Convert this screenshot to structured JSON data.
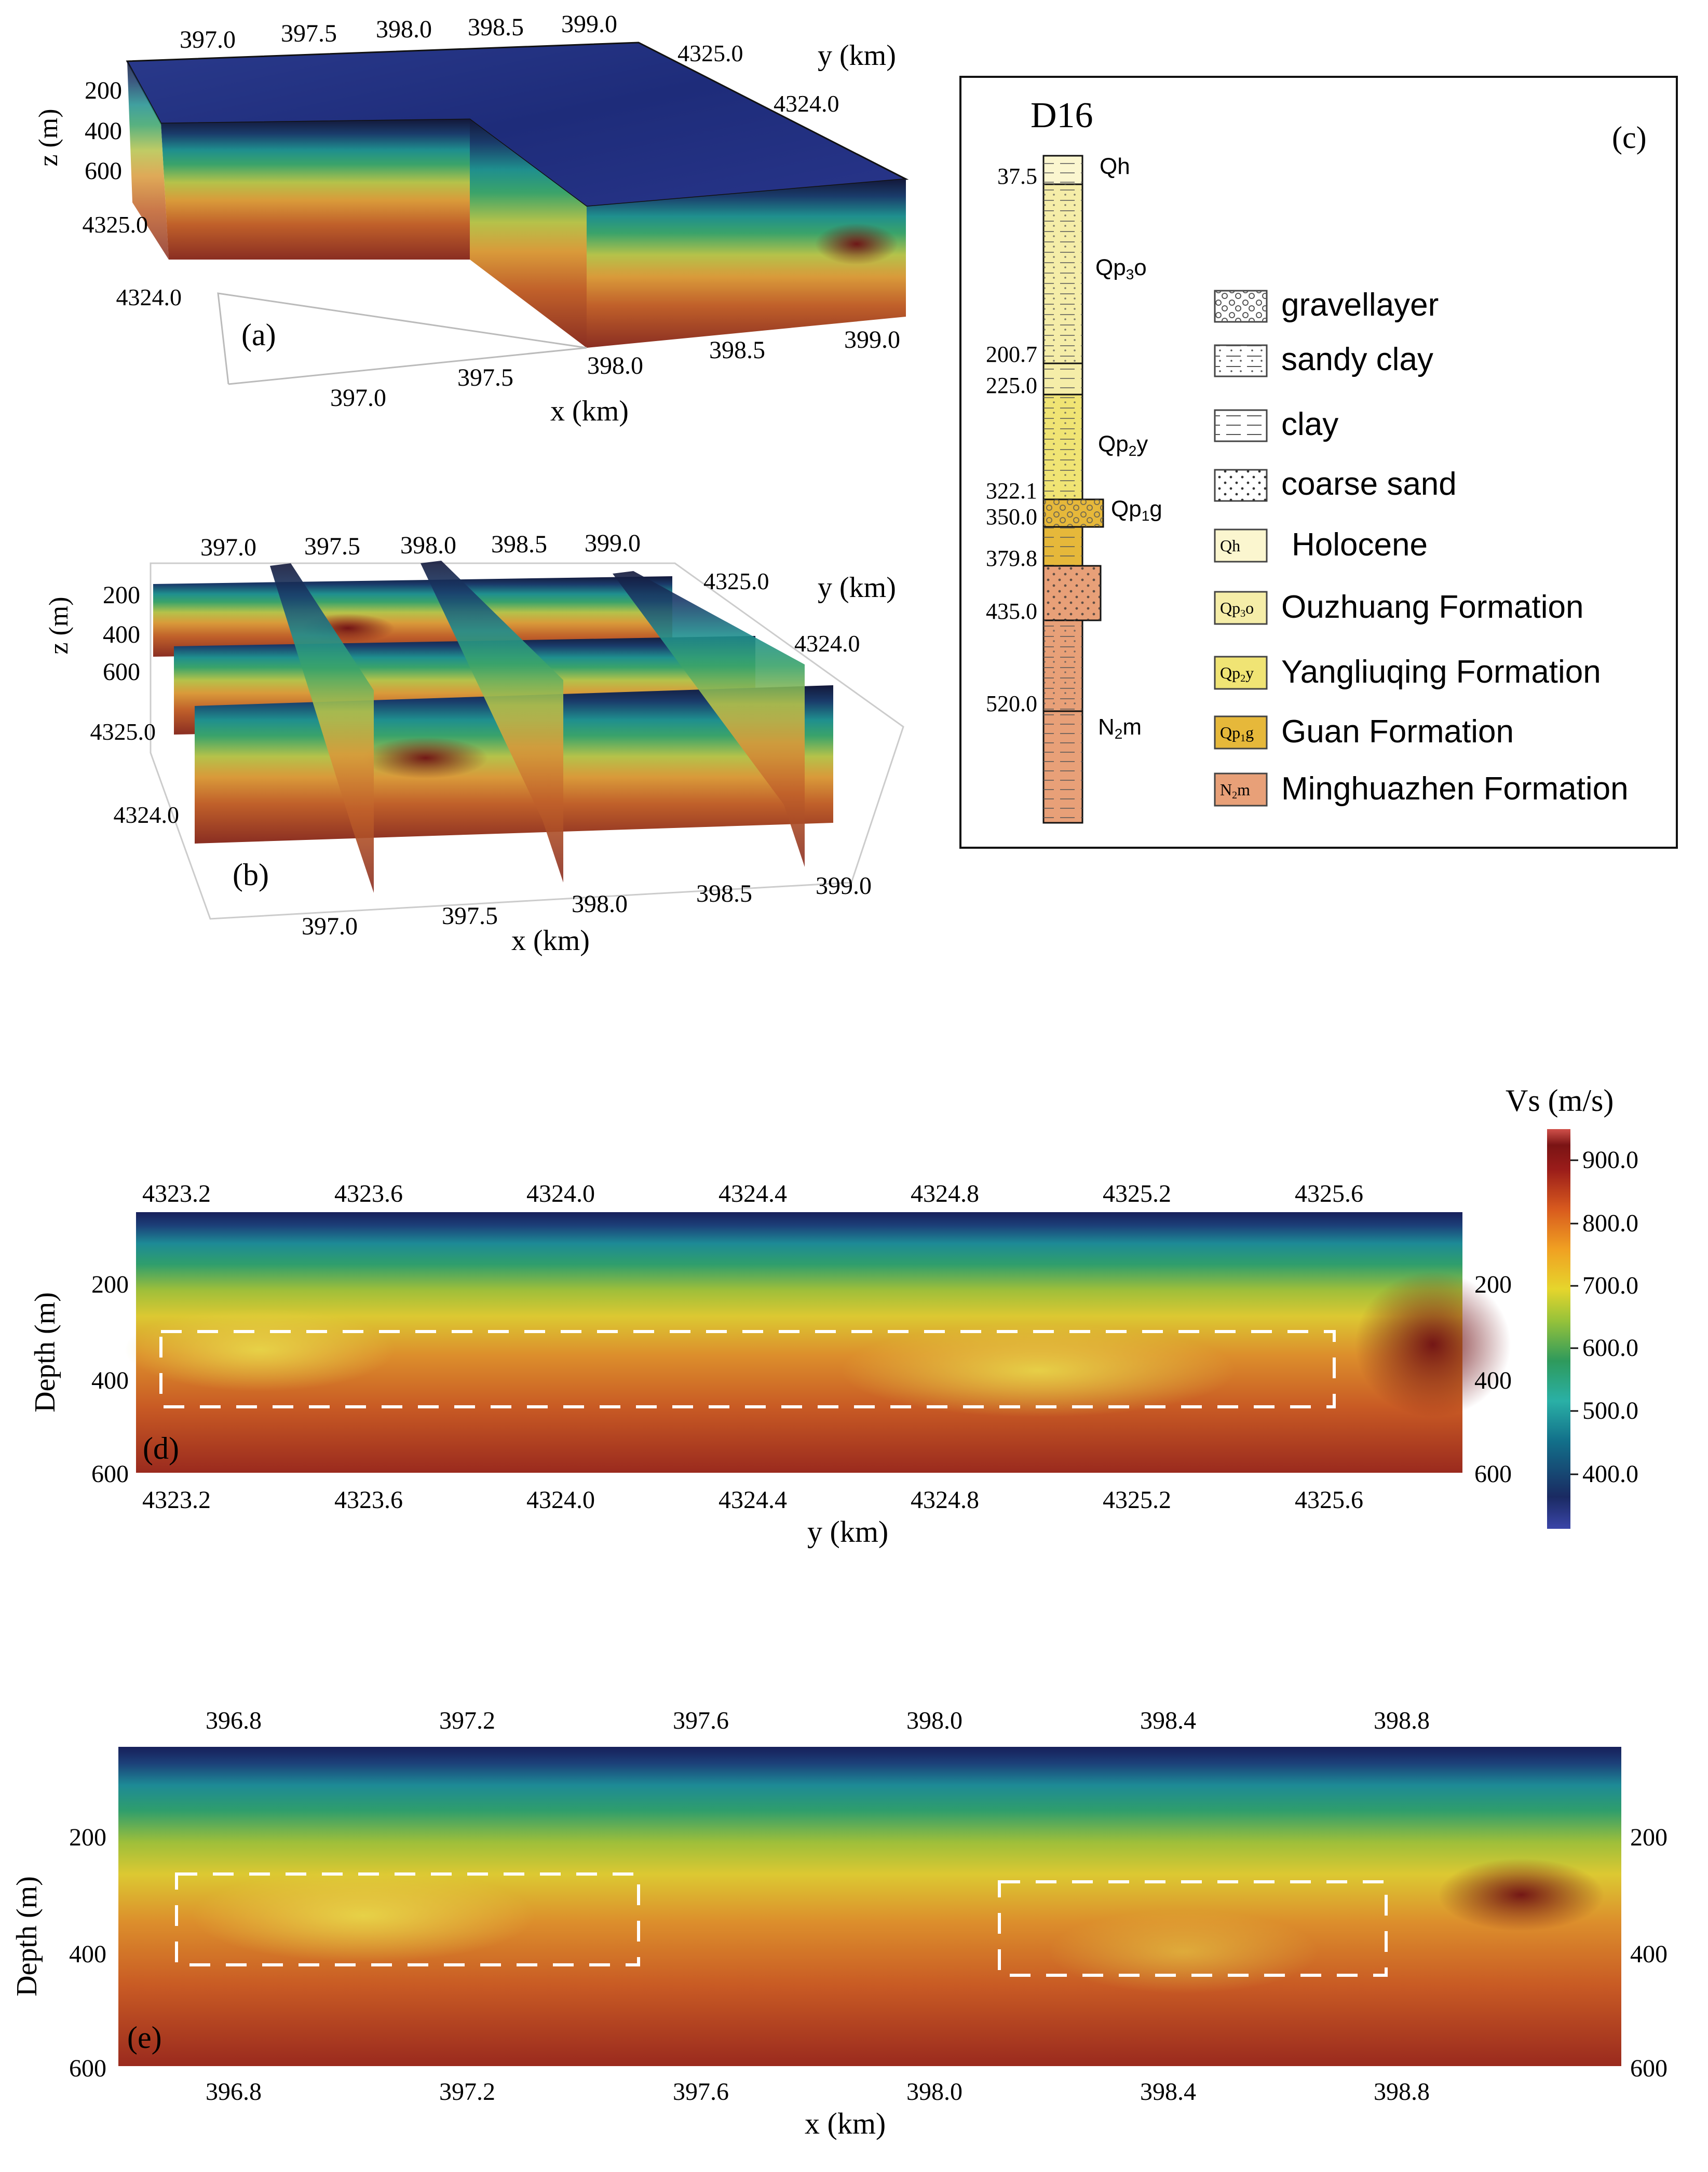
{
  "panels": {
    "a": {
      "label": "(a)",
      "top_x_ticks": [
        "397.0",
        "397.5",
        "398.0",
        "398.5",
        "399.0"
      ],
      "bottom_x_ticks": [
        "397.0",
        "397.5",
        "398.0",
        "398.5",
        "399.0"
      ],
      "y_ticks_right": [
        "4325.0",
        "4324.0"
      ],
      "y_ticks_left": [
        "4325.0",
        "4324.0"
      ],
      "z_ticks": [
        "200",
        "400",
        "600"
      ],
      "x_label": "x (km)",
      "y_label": "y (km)",
      "z_label": "z (m)"
    },
    "b": {
      "label": "(b)",
      "top_x_ticks": [
        "397.0",
        "397.5",
        "398.0",
        "398.5",
        "399.0"
      ],
      "bottom_x_ticks": [
        "397.0",
        "397.5",
        "398.0",
        "398.5",
        "399.0"
      ],
      "y_ticks_right": [
        "4325.0",
        "4324.0"
      ],
      "y_ticks_left": [
        "4325.0",
        "4324.0"
      ],
      "z_ticks": [
        "200",
        "400",
        "600"
      ],
      "x_label": "x (km)",
      "y_label": "y (km)",
      "z_label": "z (m)"
    },
    "c": {
      "label": "(c)",
      "well": "D16",
      "depths": [
        "37.5",
        "200.7",
        "225.0",
        "322.1",
        "350.0",
        "379.8",
        "435.0",
        "520.0"
      ],
      "strata": [
        {
          "sub": "Qh",
          "code": "Qh"
        },
        {
          "sub": "Qp3o",
          "code": "Qp",
          "idx": "3",
          "suffix": "o"
        },
        {
          "sub": "Qp2y",
          "code": "Qp",
          "idx": "2",
          "suffix": "y"
        },
        {
          "sub": "Qp1g",
          "code": "Qp",
          "idx": "1",
          "suffix": "g"
        },
        {
          "sub": "N2m",
          "code": "N",
          "idx": "2",
          "suffix": "m"
        }
      ],
      "lithology_legend": [
        {
          "name": "gravellayer",
          "pattern": "gravel"
        },
        {
          "name": "sandy clay",
          "pattern": "sandyclay"
        },
        {
          "name": "clay",
          "pattern": "clay"
        },
        {
          "name": "coarse sand",
          "pattern": "coarsesand"
        }
      ],
      "formation_legend": [
        {
          "code": "Qh",
          "c": "Q",
          "i": "",
          "s": "h",
          "name": "Holocene",
          "color": "#fbf6cf"
        },
        {
          "code": "Qp3o",
          "c": "Qp",
          "i": "3",
          "s": "o",
          "name": "Ouzhuang Formation",
          "color": "#f5eda8"
        },
        {
          "code": "Qp2y",
          "c": "Qp",
          "i": "2",
          "s": "y",
          "name": "Yangliuqing Formation",
          "color": "#f0e474"
        },
        {
          "code": "Qp1g",
          "c": "Qp",
          "i": "1",
          "s": "g",
          "name": "Guan Formation",
          "color": "#e6b83a"
        },
        {
          "code": "N2m",
          "c": "N",
          "i": "2",
          "s": "m",
          "name": "Minghuazhen Formation",
          "color": "#e8a078"
        }
      ]
    },
    "d": {
      "label": "(d)",
      "top_ticks": [
        "4323.2",
        "4323.6",
        "4324.0",
        "4324.4",
        "4324.8",
        "4325.2",
        "4325.6"
      ],
      "bottom_ticks": [
        "4323.2",
        "4323.6",
        "4324.0",
        "4324.4",
        "4324.8",
        "4325.2",
        "4325.6"
      ],
      "depth_ticks": [
        "200",
        "400",
        "600"
      ],
      "x_label": "y (km)",
      "y_label": "Depth  (m)"
    },
    "e": {
      "label": "(e)",
      "top_ticks": [
        "396.8",
        "397.2",
        "397.6",
        "398.0",
        "398.4",
        "398.8"
      ],
      "bottom_ticks": [
        "396.8",
        "397.2",
        "397.6",
        "398.0",
        "398.4",
        "398.8"
      ],
      "depth_ticks": [
        "200",
        "400",
        "600"
      ],
      "x_label": "x (km)",
      "y_label": "Depth (m)"
    }
  },
  "colorbar": {
    "title": "Vs (m/s)",
    "ticks": [
      "900.0",
      "800.0",
      "700.0",
      "600.0",
      "500.0",
      "400.0"
    ],
    "colors": [
      "#3a42a0",
      "#1a3570",
      "#147a88",
      "#2fa89c",
      "#3aa364",
      "#9cc33e",
      "#e6d32c",
      "#f0a424",
      "#d8601e",
      "#b82a1c",
      "#8a1a1a",
      "#c4463c"
    ]
  }
}
